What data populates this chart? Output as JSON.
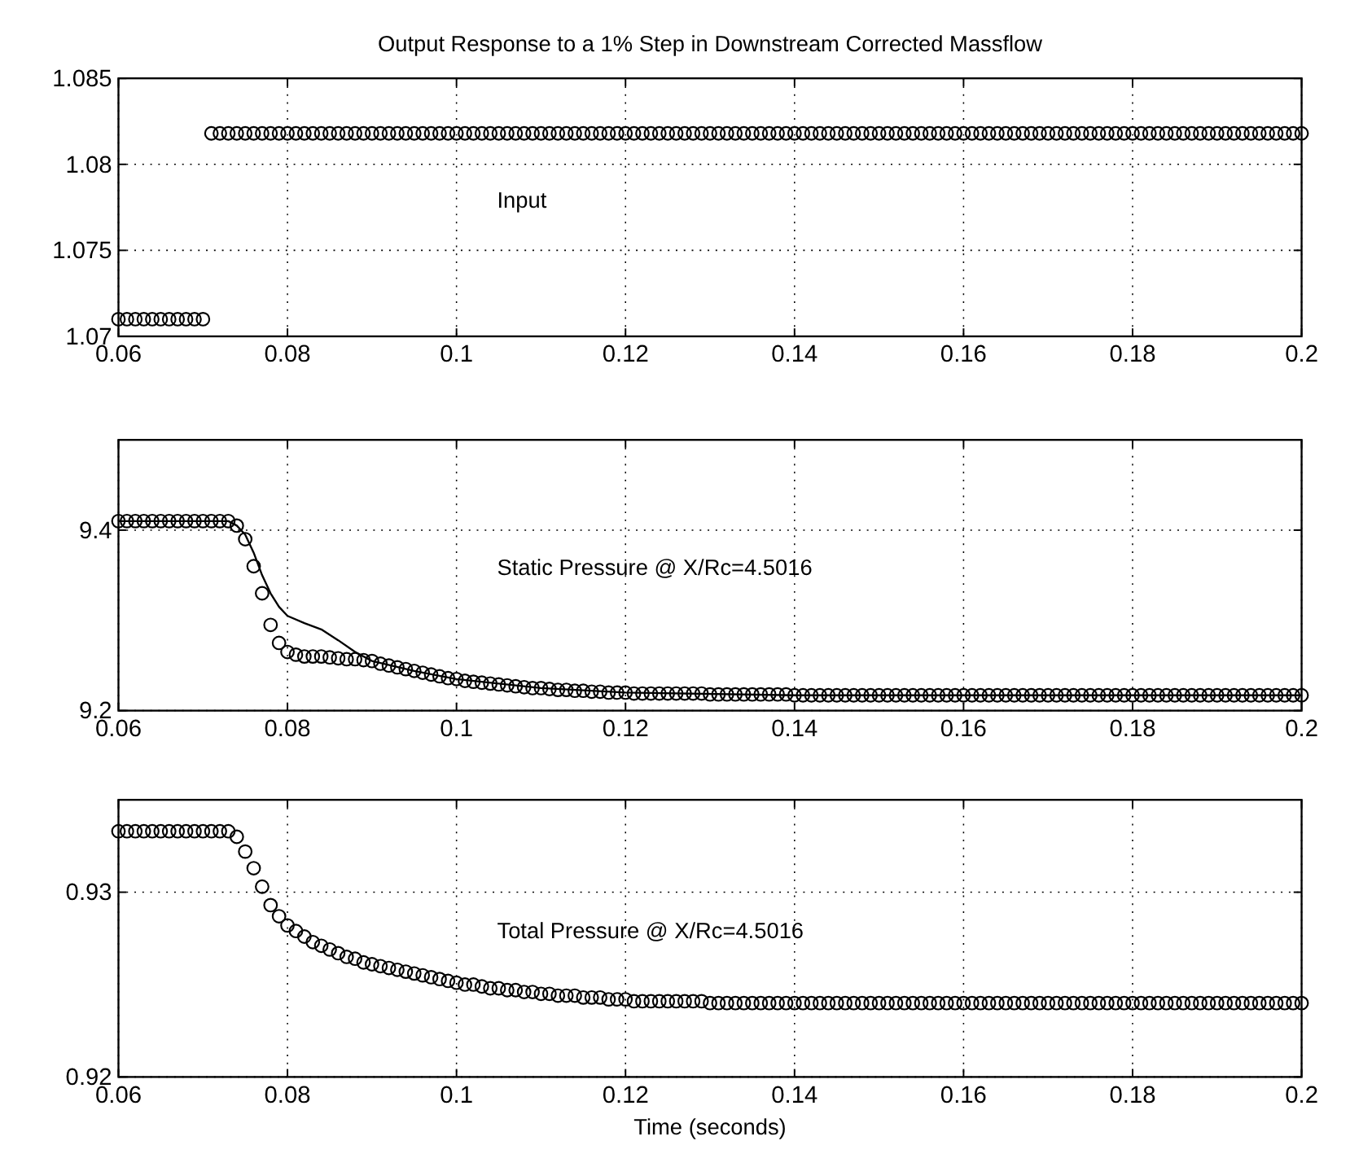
{
  "chart_data": [
    {
      "type": "scatter",
      "title": "Output Response to a 1% Step in Downstream Corrected Massflow",
      "marker": "circle",
      "grid": true,
      "xlim": [
        0.06,
        0.2
      ],
      "xticks": [
        0.06,
        0.08,
        0.1,
        0.12,
        0.14,
        0.16,
        0.18,
        0.2
      ],
      "ylim": [
        1.07,
        1.085
      ],
      "yticks": [
        1.07,
        1.075,
        1.08,
        1.085
      ],
      "annotations": [
        "Input"
      ],
      "x": [
        0.06,
        0.061,
        0.062,
        0.063,
        0.064,
        0.065,
        0.066,
        0.067,
        0.068,
        0.069,
        0.07,
        0.071,
        0.072,
        0.073,
        0.074,
        0.075,
        0.076,
        0.077,
        0.078,
        0.079,
        0.08,
        0.081,
        0.082,
        0.083,
        0.084,
        0.085,
        0.086,
        0.087,
        0.088,
        0.089,
        0.09,
        0.091,
        0.092,
        0.093,
        0.094,
        0.095,
        0.096,
        0.097,
        0.098,
        0.099,
        0.1,
        0.101,
        0.102,
        0.103,
        0.104,
        0.105,
        0.106,
        0.107,
        0.108,
        0.109,
        0.11,
        0.111,
        0.112,
        0.113,
        0.114,
        0.115,
        0.116,
        0.117,
        0.118,
        0.119,
        0.12,
        0.121,
        0.122,
        0.123,
        0.124,
        0.125,
        0.126,
        0.127,
        0.128,
        0.129,
        0.13,
        0.131,
        0.132,
        0.133,
        0.134,
        0.135,
        0.136,
        0.137,
        0.138,
        0.139,
        0.14,
        0.141,
        0.142,
        0.143,
        0.144,
        0.145,
        0.146,
        0.147,
        0.148,
        0.149,
        0.15,
        0.151,
        0.152,
        0.153,
        0.154,
        0.155,
        0.156,
        0.157,
        0.158,
        0.159,
        0.16,
        0.161,
        0.162,
        0.163,
        0.164,
        0.165,
        0.166,
        0.167,
        0.168,
        0.169,
        0.17,
        0.171,
        0.172,
        0.173,
        0.174,
        0.175,
        0.176,
        0.177,
        0.178,
        0.179,
        0.18,
        0.181,
        0.182,
        0.183,
        0.184,
        0.185,
        0.186,
        0.187,
        0.188,
        0.189,
        0.19,
        0.191,
        0.192,
        0.193,
        0.194,
        0.195,
        0.196,
        0.197,
        0.198,
        0.199,
        0.2
      ],
      "series": [
        {
          "color": "#000000",
          "values": [
            1.071,
            1.071,
            1.071,
            1.071,
            1.071,
            1.071,
            1.071,
            1.071,
            1.071,
            1.071,
            1.071,
            1.0818,
            1.0818,
            1.0818,
            1.0818,
            1.0818,
            1.0818,
            1.0818,
            1.0818,
            1.0818,
            1.0818,
            1.0818,
            1.0818,
            1.0818,
            1.0818,
            1.0818,
            1.0818,
            1.0818,
            1.0818,
            1.0818,
            1.0818,
            1.0818,
            1.0818,
            1.0818,
            1.0818,
            1.0818,
            1.0818,
            1.0818,
            1.0818,
            1.0818,
            1.0818,
            1.0818,
            1.0818,
            1.0818,
            1.0818,
            1.0818,
            1.0818,
            1.0818,
            1.0818,
            1.0818,
            1.0818,
            1.0818,
            1.0818,
            1.0818,
            1.0818,
            1.0818,
            1.0818,
            1.0818,
            1.0818,
            1.0818,
            1.0818,
            1.0818,
            1.0818,
            1.0818,
            1.0818,
            1.0818,
            1.0818,
            1.0818,
            1.0818,
            1.0818,
            1.0818,
            1.0818,
            1.0818,
            1.0818,
            1.0818,
            1.0818,
            1.0818,
            1.0818,
            1.0818,
            1.0818,
            1.0818,
            1.0818,
            1.0818,
            1.0818,
            1.0818,
            1.0818,
            1.0818,
            1.0818,
            1.0818,
            1.0818,
            1.0818,
            1.0818,
            1.0818,
            1.0818,
            1.0818,
            1.0818,
            1.0818,
            1.0818,
            1.0818,
            1.0818,
            1.0818,
            1.0818,
            1.0818,
            1.0818,
            1.0818,
            1.0818,
            1.0818,
            1.0818,
            1.0818,
            1.0818,
            1.0818,
            1.0818,
            1.0818,
            1.0818,
            1.0818,
            1.0818,
            1.0818,
            1.0818,
            1.0818,
            1.0818,
            1.0818,
            1.0818,
            1.0818,
            1.0818,
            1.0818,
            1.0818,
            1.0818,
            1.0818,
            1.0818,
            1.0818,
            1.0818,
            1.0818,
            1.0818,
            1.0818,
            1.0818,
            1.0818,
            1.0818,
            1.0818,
            1.0818,
            1.0818,
            1.0818
          ]
        }
      ]
    },
    {
      "type": "scatter",
      "marker": "circle",
      "grid": true,
      "xlim": [
        0.06,
        0.2
      ],
      "xticks": [
        0.06,
        0.08,
        0.1,
        0.12,
        0.14,
        0.16,
        0.18,
        0.2
      ],
      "ylim": [
        9.2,
        9.5
      ],
      "yticks": [
        9.2,
        9.4
      ],
      "annotations": [
        "Static Pressure @ X/Rc=4.5016"
      ],
      "x": [
        0.06,
        0.061,
        0.062,
        0.063,
        0.064,
        0.065,
        0.066,
        0.067,
        0.068,
        0.069,
        0.07,
        0.071,
        0.072,
        0.073,
        0.074,
        0.075,
        0.076,
        0.077,
        0.078,
        0.079,
        0.08,
        0.081,
        0.082,
        0.083,
        0.084,
        0.085,
        0.086,
        0.087,
        0.088,
        0.089,
        0.09,
        0.091,
        0.092,
        0.093,
        0.094,
        0.095,
        0.096,
        0.097,
        0.098,
        0.099,
        0.1,
        0.101,
        0.102,
        0.103,
        0.104,
        0.105,
        0.106,
        0.107,
        0.108,
        0.109,
        0.11,
        0.111,
        0.112,
        0.113,
        0.114,
        0.115,
        0.116,
        0.117,
        0.118,
        0.119,
        0.12,
        0.121,
        0.122,
        0.123,
        0.124,
        0.125,
        0.126,
        0.127,
        0.128,
        0.129,
        0.13,
        0.131,
        0.132,
        0.133,
        0.134,
        0.135,
        0.136,
        0.137,
        0.138,
        0.139,
        0.14,
        0.141,
        0.142,
        0.143,
        0.144,
        0.145,
        0.146,
        0.147,
        0.148,
        0.149,
        0.15,
        0.151,
        0.152,
        0.153,
        0.154,
        0.155,
        0.156,
        0.157,
        0.158,
        0.159,
        0.16,
        0.161,
        0.162,
        0.163,
        0.164,
        0.165,
        0.166,
        0.167,
        0.168,
        0.169,
        0.17,
        0.171,
        0.172,
        0.173,
        0.174,
        0.175,
        0.176,
        0.177,
        0.178,
        0.179,
        0.18,
        0.181,
        0.182,
        0.183,
        0.184,
        0.185,
        0.186,
        0.187,
        0.188,
        0.189,
        0.19,
        0.191,
        0.192,
        0.193,
        0.194,
        0.195,
        0.196,
        0.197,
        0.198,
        0.199,
        0.2
      ],
      "series": [
        {
          "color": "#000000",
          "values": [
            9.41,
            9.41,
            9.41,
            9.41,
            9.41,
            9.41,
            9.41,
            9.41,
            9.41,
            9.41,
            9.41,
            9.41,
            9.41,
            9.41,
            9.405,
            9.39,
            9.36,
            9.33,
            9.295,
            9.275,
            9.265,
            9.262,
            9.26,
            9.26,
            9.26,
            9.259,
            9.258,
            9.257,
            9.257,
            9.256,
            9.255,
            9.252,
            9.25,
            9.248,
            9.246,
            9.244,
            9.242,
            9.24,
            9.238,
            9.236,
            9.235,
            9.233,
            9.232,
            9.231,
            9.23,
            9.229,
            9.228,
            9.227,
            9.226,
            9.225,
            9.225,
            9.224,
            9.223,
            9.223,
            9.222,
            9.222,
            9.221,
            9.221,
            9.22,
            9.22,
            9.22,
            9.219,
            9.219,
            9.219,
            9.219,
            9.219,
            9.219,
            9.219,
            9.219,
            9.219,
            9.218,
            9.218,
            9.218,
            9.218,
            9.218,
            9.218,
            9.218,
            9.218,
            9.218,
            9.218,
            9.217,
            9.217,
            9.217,
            9.217,
            9.217,
            9.217,
            9.217,
            9.217,
            9.217,
            9.217,
            9.217,
            9.217,
            9.217,
            9.217,
            9.217,
            9.217,
            9.217,
            9.217,
            9.217,
            9.217,
            9.217,
            9.217,
            9.217,
            9.217,
            9.217,
            9.217,
            9.217,
            9.217,
            9.217,
            9.217,
            9.217,
            9.217,
            9.217,
            9.217,
            9.217,
            9.217,
            9.217,
            9.217,
            9.217,
            9.217,
            9.217,
            9.217,
            9.217,
            9.217,
            9.217,
            9.217,
            9.217,
            9.217,
            9.217,
            9.217,
            9.217,
            9.217,
            9.217,
            9.217,
            9.217,
            9.217,
            9.217,
            9.217,
            9.217,
            9.217,
            9.217
          ]
        },
        {
          "type": "line",
          "color": "#000000",
          "marker": "none",
          "line_style": "solid",
          "x": [
            0.06,
            0.073,
            0.074,
            0.075,
            0.076,
            0.077,
            0.078,
            0.079,
            0.08,
            0.082,
            0.084,
            0.086,
            0.088,
            0.09,
            0.095,
            0.1,
            0.11,
            0.12,
            0.14,
            0.2
          ],
          "values": [
            9.41,
            9.41,
            9.405,
            9.395,
            9.375,
            9.35,
            9.33,
            9.315,
            9.305,
            9.297,
            9.29,
            9.278,
            9.265,
            9.255,
            9.244,
            9.235,
            9.225,
            9.22,
            9.217,
            9.217
          ]
        }
      ]
    },
    {
      "type": "scatter",
      "xlabel": "Time (seconds)",
      "marker": "circle",
      "grid": true,
      "xlim": [
        0.06,
        0.2
      ],
      "xticks": [
        0.06,
        0.08,
        0.1,
        0.12,
        0.14,
        0.16,
        0.18,
        0.2
      ],
      "ylim": [
        0.92,
        0.935
      ],
      "yticks": [
        0.92,
        0.93
      ],
      "annotations": [
        "Total Pressure @ X/Rc=4.5016"
      ],
      "x": [
        0.06,
        0.061,
        0.062,
        0.063,
        0.064,
        0.065,
        0.066,
        0.067,
        0.068,
        0.069,
        0.07,
        0.071,
        0.072,
        0.073,
        0.074,
        0.075,
        0.076,
        0.077,
        0.078,
        0.079,
        0.08,
        0.081,
        0.082,
        0.083,
        0.084,
        0.085,
        0.086,
        0.087,
        0.088,
        0.089,
        0.09,
        0.091,
        0.092,
        0.093,
        0.094,
        0.095,
        0.096,
        0.097,
        0.098,
        0.099,
        0.1,
        0.101,
        0.102,
        0.103,
        0.104,
        0.105,
        0.106,
        0.107,
        0.108,
        0.109,
        0.11,
        0.111,
        0.112,
        0.113,
        0.114,
        0.115,
        0.116,
        0.117,
        0.118,
        0.119,
        0.12,
        0.121,
        0.122,
        0.123,
        0.124,
        0.125,
        0.126,
        0.127,
        0.128,
        0.129,
        0.13,
        0.131,
        0.132,
        0.133,
        0.134,
        0.135,
        0.136,
        0.137,
        0.138,
        0.139,
        0.14,
        0.141,
        0.142,
        0.143,
        0.144,
        0.145,
        0.146,
        0.147,
        0.148,
        0.149,
        0.15,
        0.151,
        0.152,
        0.153,
        0.154,
        0.155,
        0.156,
        0.157,
        0.158,
        0.159,
        0.16,
        0.161,
        0.162,
        0.163,
        0.164,
        0.165,
        0.166,
        0.167,
        0.168,
        0.169,
        0.17,
        0.171,
        0.172,
        0.173,
        0.174,
        0.175,
        0.176,
        0.177,
        0.178,
        0.179,
        0.18,
        0.181,
        0.182,
        0.183,
        0.184,
        0.185,
        0.186,
        0.187,
        0.188,
        0.189,
        0.19,
        0.191,
        0.192,
        0.193,
        0.194,
        0.195,
        0.196,
        0.197,
        0.198,
        0.199,
        0.2
      ],
      "series": [
        {
          "color": "#000000",
          "values": [
            0.9333,
            0.9333,
            0.9333,
            0.9333,
            0.9333,
            0.9333,
            0.9333,
            0.9333,
            0.9333,
            0.9333,
            0.9333,
            0.9333,
            0.9333,
            0.9333,
            0.933,
            0.9322,
            0.9313,
            0.9303,
            0.9293,
            0.9287,
            0.9282,
            0.9279,
            0.9276,
            0.9273,
            0.9271,
            0.9269,
            0.9267,
            0.9265,
            0.9264,
            0.9262,
            0.9261,
            0.926,
            0.9259,
            0.9258,
            0.9257,
            0.9256,
            0.9255,
            0.9254,
            0.9253,
            0.9252,
            0.9251,
            0.925,
            0.925,
            0.9249,
            0.9248,
            0.9248,
            0.9247,
            0.9247,
            0.9246,
            0.9246,
            0.9245,
            0.9245,
            0.9244,
            0.9244,
            0.9244,
            0.9243,
            0.9243,
            0.9243,
            0.9242,
            0.9242,
            0.9242,
            0.9241,
            0.9241,
            0.9241,
            0.9241,
            0.9241,
            0.9241,
            0.9241,
            0.9241,
            0.9241,
            0.924,
            0.924,
            0.924,
            0.924,
            0.924,
            0.924,
            0.924,
            0.924,
            0.924,
            0.924,
            0.924,
            0.924,
            0.924,
            0.924,
            0.924,
            0.924,
            0.924,
            0.924,
            0.924,
            0.924,
            0.924,
            0.924,
            0.924,
            0.924,
            0.924,
            0.924,
            0.924,
            0.924,
            0.924,
            0.924,
            0.924,
            0.924,
            0.924,
            0.924,
            0.924,
            0.924,
            0.924,
            0.924,
            0.924,
            0.924,
            0.924,
            0.924,
            0.924,
            0.924,
            0.924,
            0.924,
            0.924,
            0.924,
            0.924,
            0.924,
            0.924,
            0.924,
            0.924,
            0.924,
            0.924,
            0.924,
            0.924,
            0.924,
            0.924,
            0.924,
            0.924,
            0.924,
            0.924,
            0.924,
            0.924,
            0.924,
            0.924,
            0.924,
            0.924,
            0.924,
            0.924
          ]
        }
      ]
    }
  ]
}
